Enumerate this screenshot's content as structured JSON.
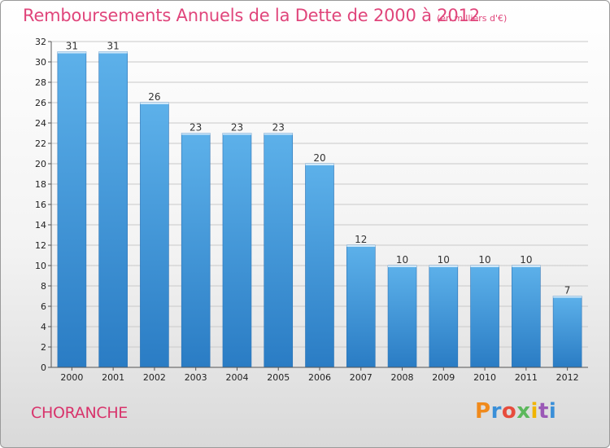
{
  "header": {
    "title": "Remboursements Annuels de la Dette de 2000 à 2012",
    "subtitle": "(en milliers d'€)"
  },
  "footer": {
    "commune": "CHORANCHE",
    "logo": {
      "text": "Proxiti",
      "letters": [
        "P",
        "r",
        "o",
        "x",
        "i",
        "t",
        "i"
      ],
      "colors": [
        "#f08a1c",
        "#3a8fd8",
        "#e74c3c",
        "#5cb85c",
        "#f0b400",
        "#9b59b6",
        "#3a8fd8"
      ]
    }
  },
  "colors": {
    "title": "#e0457b",
    "bar_light": "#5aaee8",
    "bar_dark": "#2b7ec6",
    "grid": "#c9c9c9"
  },
  "chart_data": {
    "type": "bar",
    "title": "Remboursements Annuels de la Dette de 2000 à 2012",
    "subtitle": "(en milliers d'€)",
    "xlabel": "",
    "ylabel": "",
    "categories": [
      "2000",
      "2001",
      "2002",
      "2003",
      "2004",
      "2005",
      "2006",
      "2007",
      "2008",
      "2009",
      "2010",
      "2011",
      "2012"
    ],
    "values": [
      31,
      31,
      26,
      23,
      23,
      23,
      20,
      12,
      10,
      10,
      10,
      10,
      7
    ],
    "ylim": [
      0,
      32
    ],
    "yticks": [
      0,
      2,
      4,
      6,
      8,
      10,
      12,
      14,
      16,
      18,
      20,
      22,
      24,
      26,
      28,
      30,
      32
    ],
    "grid": true,
    "data_labels": true
  }
}
